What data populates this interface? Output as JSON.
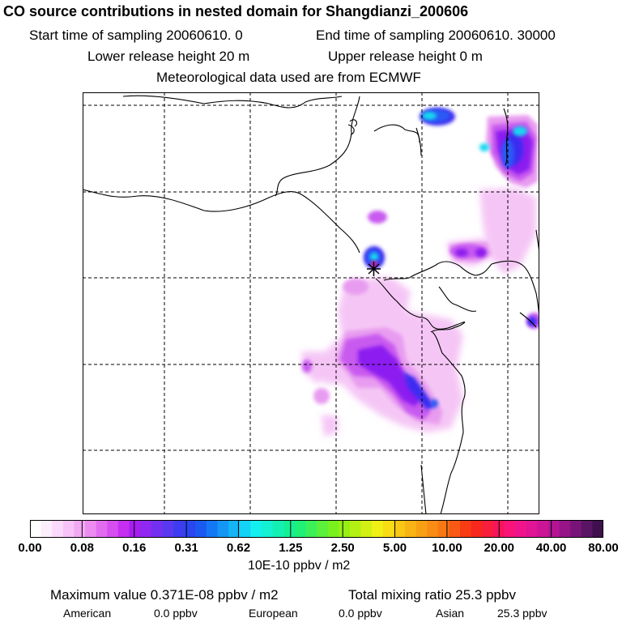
{
  "header": {
    "title": "CO  source contributions in nested domain for Shangdianzi_200606",
    "start_time": "Start time of sampling 20060610.     0",
    "end_time": "End time of sampling 20060610. 30000",
    "lower_release": "Lower release height   20 m",
    "upper_release": "Upper release height    0 m",
    "met_source": "Meteorological data used are from ECMWF"
  },
  "colorbar": {
    "labels": [
      "0.00",
      "0.08",
      "0.16",
      "0.31",
      "0.62",
      "1.25",
      "2.50",
      "5.00",
      "10.00",
      "20.00",
      "40.00",
      "80.00"
    ],
    "units": "10E-10 ppbv / m2",
    "colors": [
      "#ffffff",
      "#fdeefd",
      "#fbd9fb",
      "#f7c2f7",
      "#f2a8f2",
      "#ec8cf0",
      "#e26cf0",
      "#d64df0",
      "#c42ff0",
      "#a61ef0",
      "#8f28f0",
      "#7430f0",
      "#5a38f0",
      "#3e3cf0",
      "#2a46f0",
      "#1a5af0",
      "#1478f5",
      "#1496f5",
      "#14b4f5",
      "#14d2f5",
      "#14f0f0",
      "#14f0d2",
      "#14f0b4",
      "#14f096",
      "#1ef078",
      "#3cf05a",
      "#5af03c",
      "#78f01e",
      "#96f014",
      "#b4f014",
      "#d2f014",
      "#f0f014",
      "#f8dc14",
      "#f8c814",
      "#f8b414",
      "#f8a014",
      "#f88c14",
      "#f87814",
      "#f85a14",
      "#f83c14",
      "#f8281e",
      "#f81e3c",
      "#f8145a",
      "#f81478",
      "#f0148c",
      "#e01494",
      "#cc1496",
      "#b41494",
      "#961488",
      "#781478",
      "#5a1464",
      "#40104e"
    ]
  },
  "map": {
    "receptor_marker": "star",
    "grid_lines": true,
    "plume_colors": {
      "faint": "#f5c6f5",
      "light": "#e89cf0",
      "mid": "#c85af0",
      "strong": "#8c1ef0",
      "deep": "#3c2cf0",
      "blue": "#2a5af5",
      "cyan": "#14d8f0",
      "hot": "#f0148c"
    }
  },
  "footer": {
    "max_label": "Maximum value  0.371E-08 ppbv / m2",
    "total_label": "Total mixing ratio      25.3 ppbv",
    "american_label": "American",
    "american_value": "0.0 ppbv",
    "european_label": "European",
    "european_value": "0.0 ppbv",
    "asian_label": "Asian",
    "asian_value": "25.3 ppbv"
  }
}
